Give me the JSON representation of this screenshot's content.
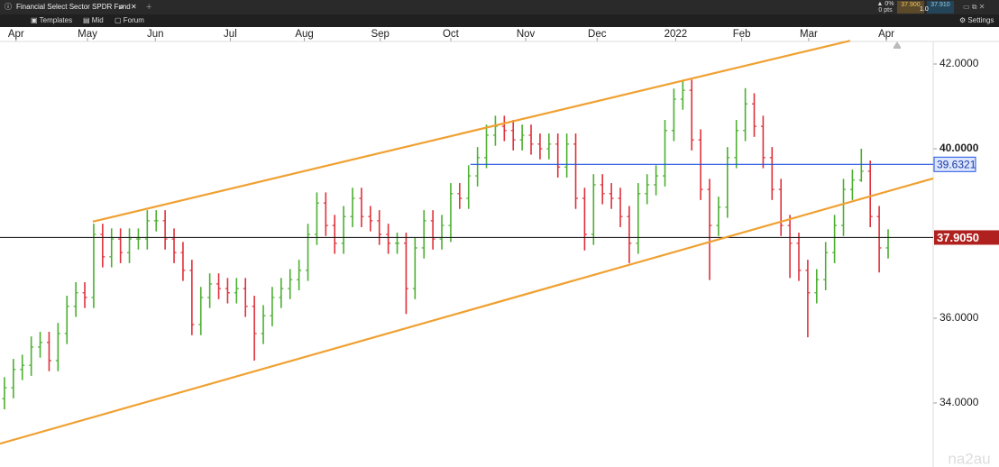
{
  "toolbar": {
    "title": "Financial Select Sector SPDR Fund",
    "items": [
      "Templates",
      "Mid",
      "Forum"
    ],
    "settings": "Settings",
    "change": "▲ 0%",
    "points": "0 pts",
    "bid": "37.900",
    "ask": "37.910",
    "size": "1.0"
  },
  "watermark": "na2au",
  "chart_data": {
    "type": "ohlc",
    "up_color": "#4caf30",
    "down_color": "#e0303a",
    "open": [
      34.1,
      34.36,
      34.79,
      34.89,
      35.32,
      35.43,
      35.0,
      35.64,
      36.28,
      36.6,
      36.49,
      37.98,
      37.45,
      37.87,
      37.55,
      37.87,
      37.87,
      38.3,
      38.3,
      37.87,
      37.55,
      37.13,
      35.85,
      36.49,
      36.81,
      36.7,
      36.6,
      36.7,
      36.28,
      35.64,
      36.06,
      36.49,
      36.7,
      36.91,
      37.13,
      37.98,
      38.72,
      38.19,
      37.77,
      38.4,
      38.83,
      38.4,
      38.3,
      37.98,
      37.77,
      37.77,
      36.7,
      37.66,
      38.3,
      37.87,
      38.19,
      38.94,
      38.83,
      39.36,
      39.79,
      40.32,
      40.53,
      40.43,
      40.21,
      40.32,
      40.11,
      40.0,
      40.11,
      39.57,
      40.11,
      38.83,
      37.98,
      39.15,
      38.94,
      38.83,
      38.4,
      37.77,
      38.94,
      39.15,
      39.36,
      40.43,
      41.17,
      41.38,
      40.21,
      39.04,
      38.19,
      38.62,
      39.79,
      40.43,
      41.06,
      40.53,
      39.79,
      39.04,
      38.19,
      37.77,
      37.13,
      36.6,
      36.91,
      37.55,
      38.19,
      39.04,
      39.26,
      39.47,
      38.4,
      37.66
    ],
    "high": [
      34.61,
      35.04,
      35.14,
      35.57,
      35.68,
      35.68,
      35.89,
      36.53,
      36.85,
      36.85,
      38.23,
      38.23,
      38.12,
      38.12,
      38.12,
      38.12,
      38.55,
      38.55,
      38.55,
      38.12,
      37.8,
      37.38,
      36.74,
      37.06,
      37.06,
      36.95,
      36.95,
      36.95,
      36.53,
      36.31,
      36.74,
      36.95,
      37.16,
      37.38,
      38.23,
      38.97,
      38.97,
      38.44,
      38.65,
      39.08,
      39.08,
      38.65,
      38.55,
      38.23,
      38.02,
      38.02,
      37.91,
      38.55,
      38.55,
      38.44,
      39.19,
      39.19,
      39.61,
      40.04,
      40.57,
      40.78,
      40.78,
      40.68,
      40.57,
      40.57,
      40.36,
      40.36,
      40.36,
      40.36,
      40.36,
      39.08,
      39.4,
      39.4,
      39.19,
      39.08,
      38.65,
      39.19,
      39.4,
      39.61,
      40.68,
      41.42,
      41.63,
      41.63,
      40.46,
      39.29,
      38.87,
      40.04,
      40.68,
      41.43,
      41.31,
      40.78,
      40.04,
      39.29,
      38.44,
      38.02,
      37.38,
      37.16,
      37.8,
      38.44,
      39.29,
      39.51,
      40.0,
      39.72,
      38.65,
      38.1
    ],
    "low": [
      33.85,
      34.11,
      34.54,
      34.64,
      35.07,
      34.75,
      34.75,
      35.39,
      36.03,
      36.24,
      36.24,
      37.2,
      37.2,
      37.3,
      37.3,
      37.62,
      37.62,
      38.05,
      37.62,
      37.3,
      36.88,
      35.6,
      35.6,
      36.24,
      36.45,
      36.35,
      36.35,
      36.03,
      35.0,
      35.39,
      35.81,
      36.24,
      36.45,
      36.66,
      36.88,
      37.73,
      37.94,
      37.52,
      37.52,
      38.15,
      38.15,
      38.05,
      37.73,
      37.52,
      37.52,
      36.1,
      36.45,
      37.41,
      37.62,
      37.62,
      37.8,
      38.58,
      38.58,
      39.11,
      39.54,
      40.07,
      40.18,
      39.96,
      39.96,
      39.86,
      39.75,
      39.75,
      39.32,
      39.32,
      38.58,
      37.6,
      37.73,
      38.69,
      38.58,
      38.15,
      37.3,
      37.52,
      38.69,
      38.9,
      39.11,
      40.18,
      40.92,
      39.96,
      38.79,
      36.9,
      37.94,
      38.37,
      39.54,
      40.18,
      40.28,
      39.54,
      38.79,
      37.94,
      36.95,
      36.88,
      35.55,
      36.35,
      36.66,
      37.3,
      37.94,
      38.79,
      39.22,
      38.15,
      37.08,
      37.41
    ],
    "close": [
      34.36,
      34.79,
      34.89,
      35.32,
      35.43,
      35.0,
      35.64,
      36.28,
      36.6,
      36.49,
      37.98,
      37.45,
      37.87,
      37.55,
      37.87,
      37.87,
      38.3,
      38.3,
      37.87,
      37.55,
      37.13,
      35.85,
      36.49,
      36.81,
      36.7,
      36.6,
      36.7,
      36.28,
      35.64,
      36.06,
      36.49,
      36.7,
      36.91,
      37.13,
      37.98,
      38.72,
      38.19,
      37.77,
      38.4,
      38.83,
      38.4,
      38.3,
      37.98,
      37.77,
      37.77,
      36.7,
      37.66,
      38.3,
      37.87,
      38.19,
      38.94,
      38.83,
      39.36,
      39.79,
      40.32,
      40.53,
      40.43,
      40.21,
      40.32,
      40.11,
      40.0,
      40.11,
      39.57,
      40.11,
      38.83,
      37.98,
      39.15,
      38.94,
      38.83,
      38.4,
      37.77,
      38.94,
      39.15,
      39.36,
      40.43,
      41.17,
      41.38,
      40.21,
      39.04,
      38.19,
      38.62,
      39.79,
      40.43,
      41.06,
      40.53,
      39.79,
      39.04,
      38.19,
      37.77,
      37.13,
      36.6,
      36.91,
      37.55,
      38.19,
      39.04,
      39.26,
      39.47,
      38.4,
      37.66,
      37.905
    ],
    "xlim": [
      -0.5,
      104.05
    ],
    "xticks": [
      {
        "value": 1.3,
        "label": "Apr"
      },
      {
        "value": 9.3,
        "label": "May"
      },
      {
        "value": 16.9,
        "label": "Jun"
      },
      {
        "value": 25.3,
        "label": "Jul"
      },
      {
        "value": 33.6,
        "label": "Aug"
      },
      {
        "value": 42.1,
        "label": "Sep"
      },
      {
        "value": 50,
        "label": "Oct"
      },
      {
        "value": 58.4,
        "label": "Nov"
      },
      {
        "value": 66.4,
        "label": "Dec"
      },
      {
        "value": 75.2,
        "label": "2022"
      },
      {
        "value": 82.6,
        "label": "Feb"
      },
      {
        "value": 90.1,
        "label": "Mar"
      },
      {
        "value": 98.8,
        "label": "Apr"
      }
    ],
    "ylim": [
      32.489,
      42.532
    ],
    "yticks": [
      {
        "value": 42,
        "label": "42.0000"
      },
      {
        "value": 40,
        "label": "40.0000"
      },
      {
        "value": 36,
        "label": "36.0000"
      },
      {
        "value": 34,
        "label": "34.0000"
      }
    ],
    "trend_lines": [
      {
        "color": "#f0a030",
        "x": [
          9.9,
          94.75
        ],
        "y": [
          38.28,
          42.55
        ]
      },
      {
        "color": "#f0a030",
        "x": [
          -0.5,
          104.05
        ],
        "y": [
          33.04,
          39.3
        ]
      }
    ],
    "price_lines": [
      {
        "value": 39.6321,
        "label": "39.6321",
        "color": "#2050e0",
        "start": 52.2
      },
      {
        "value": 37.905,
        "label": "37.9050",
        "color": "#222222",
        "start": -0.5
      }
    ]
  }
}
